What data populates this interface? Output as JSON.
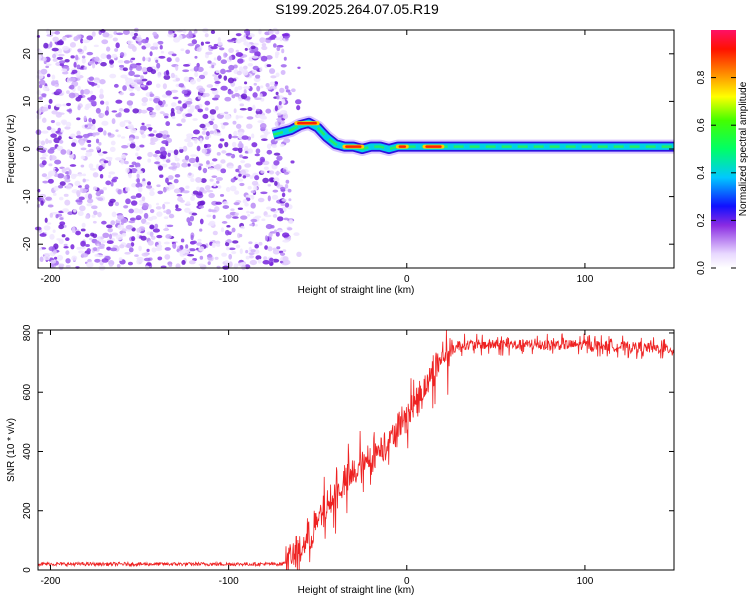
{
  "chart_data": [
    {
      "type": "heatmap",
      "title": "S199.2025.264.07.05.R19",
      "xlabel": "Height of straight line (km)",
      "ylabel": "Frequency (Hz)",
      "xlim": [
        -207,
        150
      ],
      "ylim": [
        -25,
        25
      ],
      "xticks": [
        -200,
        -100,
        0,
        100
      ],
      "yticks": [
        -20,
        -10,
        0,
        10,
        20
      ],
      "colorbar": {
        "label": "Normalized spectral amplitude",
        "range": [
          0,
          1
        ],
        "ticks": [
          0.0,
          0.2,
          0.4,
          0.6,
          0.8
        ]
      },
      "noise_region_x": [
        -207,
        -65
      ],
      "ridge": {
        "x": [
          -75,
          -70,
          -65,
          -60,
          -55,
          -50,
          -45,
          -40,
          -35,
          -30,
          -25,
          -20,
          -15,
          -10,
          -5,
          0,
          5,
          10,
          15,
          20,
          30,
          40,
          50,
          60,
          70,
          80,
          90,
          100,
          110,
          120,
          130,
          140,
          150
        ],
        "freq": [
          3,
          3.5,
          4,
          5,
          5.5,
          4.5,
          2.5,
          1,
          0.5,
          0.5,
          0,
          0.5,
          0.5,
          0,
          0.5,
          0.5,
          0.5,
          0.5,
          0.5,
          0.5,
          0.5,
          0.5,
          0.5,
          0.5,
          0.5,
          0.5,
          0.5,
          0.5,
          0.5,
          0.5,
          0.5,
          0.5,
          0.5
        ],
        "peak_amplitude_regions": [
          [
            -62,
            -50
          ],
          [
            -35,
            -25
          ],
          [
            -5,
            0
          ],
          [
            10,
            20
          ]
        ]
      }
    },
    {
      "type": "line",
      "xlabel": "Height of straight line (km)",
      "ylabel": "SNR (10 * v/v)",
      "xlim": [
        -207,
        150
      ],
      "ylim": [
        0,
        810
      ],
      "xticks": [
        -200,
        -100,
        0,
        100
      ],
      "yticks": [
        0,
        200,
        400,
        600,
        800
      ],
      "color": "#ee2222",
      "trend": {
        "x": [
          -207,
          -70,
          -60,
          -50,
          -40,
          -30,
          -20,
          -10,
          0,
          10,
          20,
          30,
          40,
          60,
          100,
          150
        ],
        "y": [
          20,
          20,
          60,
          160,
          250,
          320,
          380,
          440,
          520,
          620,
          720,
          760,
          760,
          760,
          760,
          745
        ]
      }
    }
  ]
}
